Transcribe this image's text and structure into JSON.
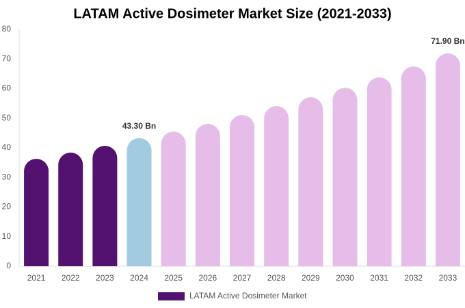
{
  "chart_data": {
    "type": "bar",
    "title": "LATAM Active Dosimeter Market Size (2021-2033)",
    "categories": [
      "2021",
      "2022",
      "2023",
      "2024",
      "2025",
      "2026",
      "2027",
      "2028",
      "2029",
      "2030",
      "2031",
      "2032",
      "2033"
    ],
    "series": [
      {
        "name": "LATAM Active Dosimeter Market",
        "color": "#541270",
        "values": [
          36.3,
          38.4,
          40.7,
          43.3,
          45.5,
          48.1,
          51.1,
          54.1,
          57.1,
          60.3,
          63.8,
          67.5,
          71.9
        ],
        "value_labels": [
          null,
          null,
          null,
          "43.30 Bn",
          null,
          null,
          null,
          null,
          null,
          null,
          null,
          null,
          "71.90 Bn"
        ],
        "colors": [
          "#541270",
          "#541270",
          "#541270",
          "#a3cbdf",
          "#e6bde9",
          "#e6bde9",
          "#e6bde9",
          "#e6bde9",
          "#e6bde9",
          "#e6bde9",
          "#e6bde9",
          "#e6bde9",
          "#e6bde9"
        ]
      }
    ],
    "ylim": [
      0,
      80
    ],
    "yticks": [
      0,
      10,
      20,
      30,
      40,
      50,
      60,
      70,
      80
    ],
    "grid": false
  }
}
